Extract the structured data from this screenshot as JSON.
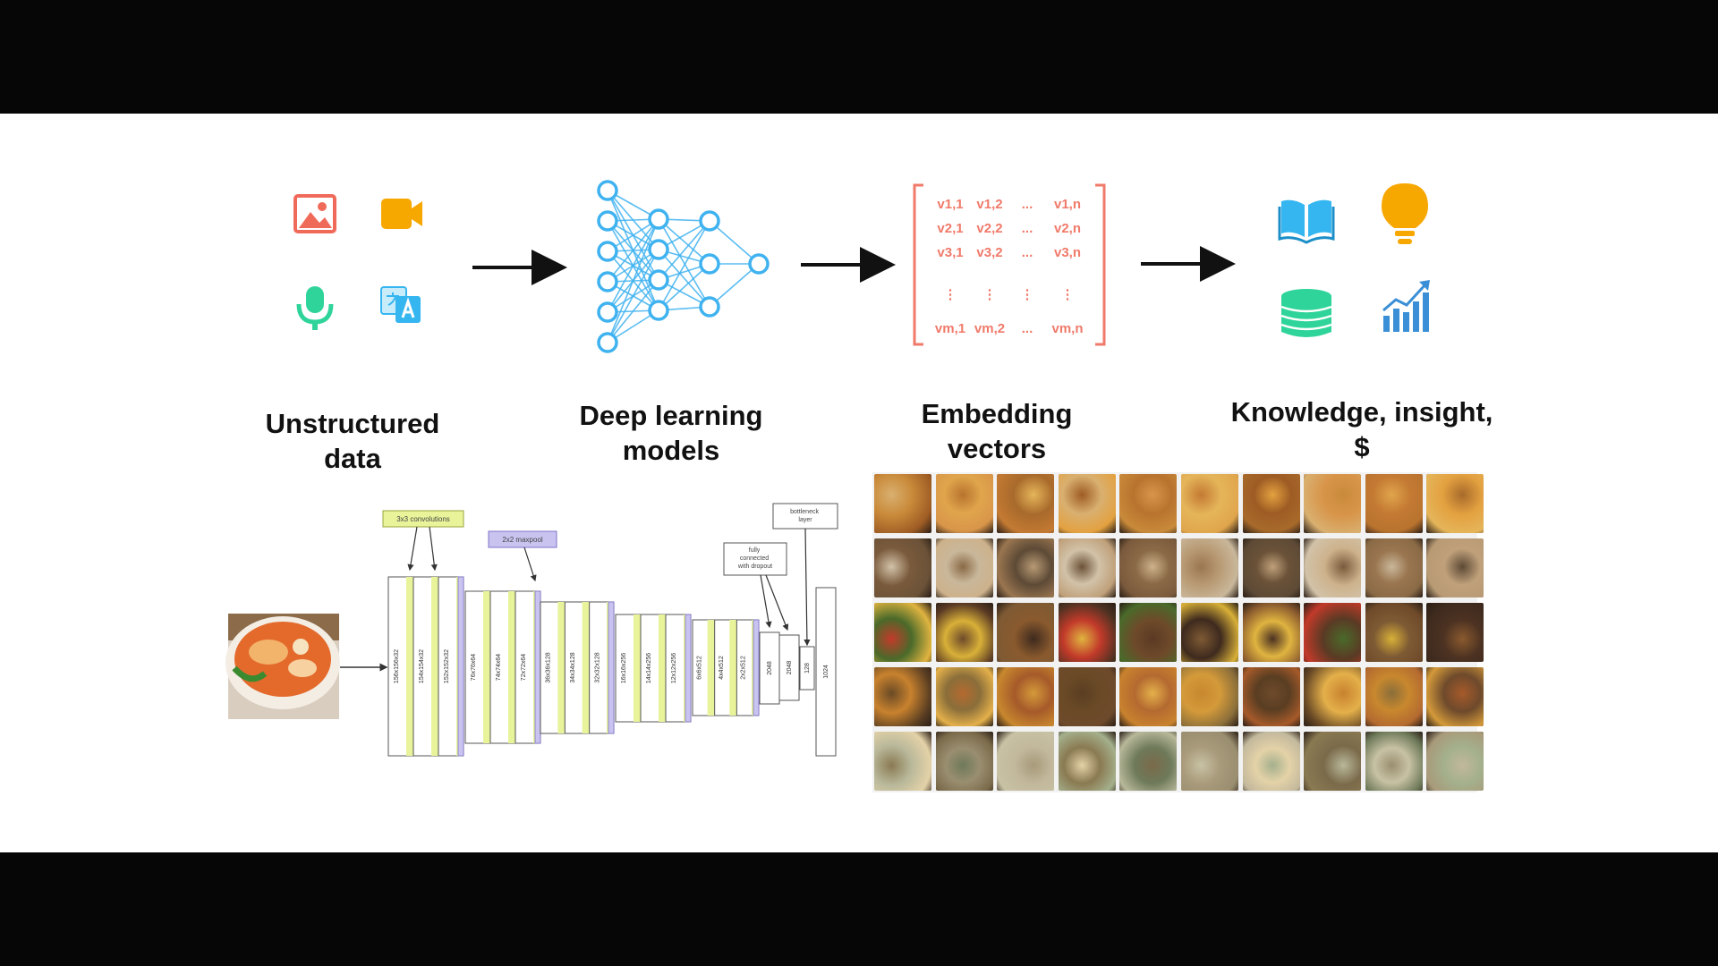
{
  "stages": [
    {
      "id": "unstructured",
      "line1": "Unstructured",
      "line2": "data"
    },
    {
      "id": "models",
      "line1": "Deep learning",
      "line2": "models"
    },
    {
      "id": "embeddings",
      "line1": "Embedding",
      "line2": "vectors"
    },
    {
      "id": "knowledge",
      "line1": "Knowledge, insight,",
      "line2": "$"
    }
  ],
  "input_icons": [
    "image-icon",
    "video-icon",
    "microphone-icon",
    "translate-icon"
  ],
  "output_icons": [
    "book-icon",
    "lightbulb-icon",
    "database-icon",
    "chart-growth-icon"
  ],
  "matrix": {
    "rows": [
      [
        "v1,1",
        "v1,2",
        "...",
        "v1,n"
      ],
      [
        "v2,1",
        "v2,2",
        "...",
        "v2,n"
      ],
      [
        "v3,1",
        "v3,2",
        "...",
        "v3,n"
      ],
      [
        "⋮",
        "⋮",
        "⋮",
        "⋮"
      ],
      [
        "vm,1",
        "vm,2",
        "...",
        "vm,n"
      ]
    ]
  },
  "cnn": {
    "callouts": {
      "conv": "3x3 convolutions",
      "maxpool": "2x2 maxpool",
      "fc": "fully connected with dropout",
      "bottleneck": "bottleneck layer"
    },
    "blocks": [
      {
        "labels": [
          "156x156x32",
          "154x154x32",
          "152x152x32"
        ]
      },
      {
        "labels": [
          "76x76x64",
          "74x74x64",
          "72x72x64"
        ]
      },
      {
        "labels": [
          "36x36x128",
          "34x34x128",
          "32x32x128"
        ]
      },
      {
        "labels": [
          "16x16x256",
          "14x14x256",
          "12x12x256"
        ]
      },
      {
        "labels": [
          "6x6x512",
          "4x4x512",
          "2x2x512"
        ]
      }
    ],
    "dense": [
      "2048",
      "2048",
      "128",
      "1024"
    ]
  },
  "colors": {
    "icon_red": "#f06a5a",
    "icon_orange": "#f7a800",
    "icon_green": "#2fd49a",
    "icon_blue": "#35b6f0",
    "network": "#3fb2f0",
    "matrix": "#f07a6a",
    "conv_band": "#e8f39a",
    "pool_band": "#c9c3f0"
  }
}
